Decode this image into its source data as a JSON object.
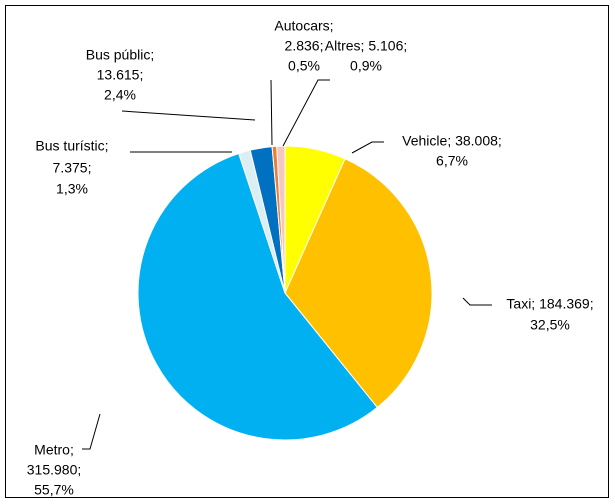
{
  "chart_data": {
    "type": "pie",
    "values": [
      38008,
      184369,
      315980,
      7375,
      13615,
      2836,
      5106
    ],
    "value_labels": [
      [
        "Vehicle; 38.008;",
        "6,7%"
      ],
      [
        "Taxi; 184.369;",
        "32,5%"
      ],
      [
        "Metro;",
        "315.980;",
        "55,7%"
      ],
      [
        "Bus turístic;",
        "7.375;",
        "1,3%"
      ],
      [
        "Bus públic;",
        "13.615;",
        "2,4%"
      ],
      [
        "Autocars;",
        "2.836;",
        "0,5%"
      ],
      [
        "Altres; 5.106;",
        "0,9%"
      ]
    ],
    "colors": [
      "#ffff00",
      "#ffc000",
      "#00b0f0",
      "#daeef3",
      "#0070c0",
      "#ed7d31",
      "#f4c7c3"
    ]
  }
}
